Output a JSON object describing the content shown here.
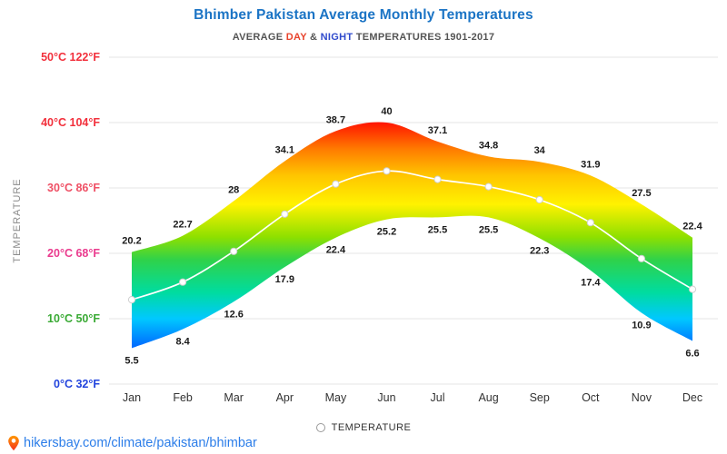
{
  "title": "Bhimber Pakistan Average Monthly Temperatures",
  "subtitle": {
    "part1": "AVERAGE",
    "day": "DAY",
    "part2": "&",
    "night": "NIGHT",
    "part3": "TEMPERATURES 1901-2017"
  },
  "legend": {
    "label": "TEMPERATURE"
  },
  "footer": {
    "url": "hikersbay.com/climate/pakistan/bhimbar",
    "pin_color": "#ff5722"
  },
  "chart_data": {
    "type": "area",
    "title": "Bhimber Pakistan Average Monthly Temperatures",
    "ylabel": "TEMPERATURE",
    "ylim": [
      0,
      50
    ],
    "grid": true,
    "categories": [
      "Jan",
      "Feb",
      "Mar",
      "Apr",
      "May",
      "Jun",
      "Jul",
      "Aug",
      "Sep",
      "Oct",
      "Nov",
      "Dec"
    ],
    "series": [
      {
        "name": "DAY",
        "values": [
          20.2,
          22.7,
          28,
          34.1,
          38.7,
          40,
          37.1,
          34.8,
          34,
          31.9,
          27.5,
          22.4
        ]
      },
      {
        "name": "NIGHT",
        "values": [
          5.5,
          8.4,
          12.6,
          17.9,
          22.4,
          25.2,
          25.5,
          25.5,
          22.3,
          17.4,
          10.9,
          6.6
        ]
      },
      {
        "name": "TEMPERATURE",
        "values": [
          12.9,
          15.6,
          20.3,
          26.0,
          30.6,
          32.6,
          31.3,
          30.2,
          28.2,
          24.7,
          19.2,
          14.5
        ]
      }
    ],
    "yticks": [
      {
        "celsius": "50°C",
        "fahrenheit": "122°F",
        "value": 50,
        "color": "#f2303c"
      },
      {
        "celsius": "40°C",
        "fahrenheit": "104°F",
        "value": 40,
        "color": "#f2303c"
      },
      {
        "celsius": "30°C",
        "fahrenheit": "86°F",
        "value": 30,
        "color": "#ef5065"
      },
      {
        "celsius": "20°C",
        "fahrenheit": "68°F",
        "value": 20,
        "color": "#ea3b8e"
      },
      {
        "celsius": "10°C",
        "fahrenheit": "50°F",
        "value": 10,
        "color": "#3aaa35"
      },
      {
        "celsius": "0°C",
        "fahrenheit": "32°F",
        "value": 0,
        "color": "#2244dd"
      }
    ],
    "gradient_stops": [
      {
        "offset": 0.0,
        "color": "#ff0030"
      },
      {
        "offset": 0.2,
        "color": "#ff1500"
      },
      {
        "offset": 0.28,
        "color": "#ff7a00"
      },
      {
        "offset": 0.36,
        "color": "#ffc400"
      },
      {
        "offset": 0.45,
        "color": "#fff200"
      },
      {
        "offset": 0.55,
        "color": "#8ee000"
      },
      {
        "offset": 0.62,
        "color": "#2fd24a"
      },
      {
        "offset": 0.72,
        "color": "#00dca0"
      },
      {
        "offset": 0.8,
        "color": "#00c8ff"
      },
      {
        "offset": 0.88,
        "color": "#0071ff"
      },
      {
        "offset": 1.0,
        "color": "#0428e0"
      }
    ],
    "gridline_color": "#e4e4e4",
    "label_color": "#1a1a1a",
    "month_color": "#333333",
    "axis_title_color": "#8a8a8a"
  }
}
